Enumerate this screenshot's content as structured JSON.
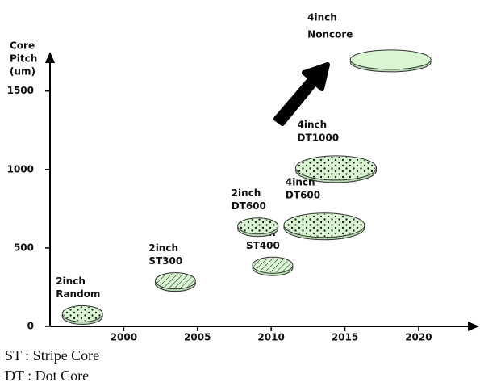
{
  "chart_data": {
    "type": "scatter",
    "y_label_lines": [
      "Core",
      "Pitch",
      "(um)"
    ],
    "xlim": [
      1995,
      2024
    ],
    "ylim": [
      0,
      1720
    ],
    "xticks": [
      2000,
      2005,
      2010,
      2015,
      2020
    ],
    "yticks": [
      0,
      500,
      1000,
      1500
    ],
    "points": [
      {
        "size_label": "2inch",
        "name": "Random",
        "x": 1997.2,
        "y": 80,
        "pattern": "dots",
        "disk": "small"
      },
      {
        "size_label": "2inch",
        "name": "ST300",
        "x": 2003.5,
        "y": 290,
        "pattern": "stripes",
        "disk": "small"
      },
      {
        "size_label": "2inch",
        "name": "ST400",
        "x": 2010.1,
        "y": 390,
        "pattern": "stripes",
        "disk": "small"
      },
      {
        "size_label": "2inch",
        "name": "DT600",
        "x": 2009.1,
        "y": 640,
        "pattern": "dots",
        "disk": "small"
      },
      {
        "size_label": "4inch",
        "name": "DT600",
        "x": 2013.6,
        "y": 645,
        "pattern": "dots",
        "disk": "large"
      },
      {
        "size_label": "4inch",
        "name": "DT1000",
        "x": 2014.4,
        "y": 1010,
        "pattern": "dots",
        "disk": "large"
      },
      {
        "size_label": "4inch",
        "name": "Noncore",
        "x": 2018.1,
        "y": 1700,
        "pattern": "none",
        "disk": "large"
      }
    ],
    "notes": [
      "ST : Stripe Core",
      "DT : Dot Core"
    ],
    "color": "#d9f5d2"
  }
}
